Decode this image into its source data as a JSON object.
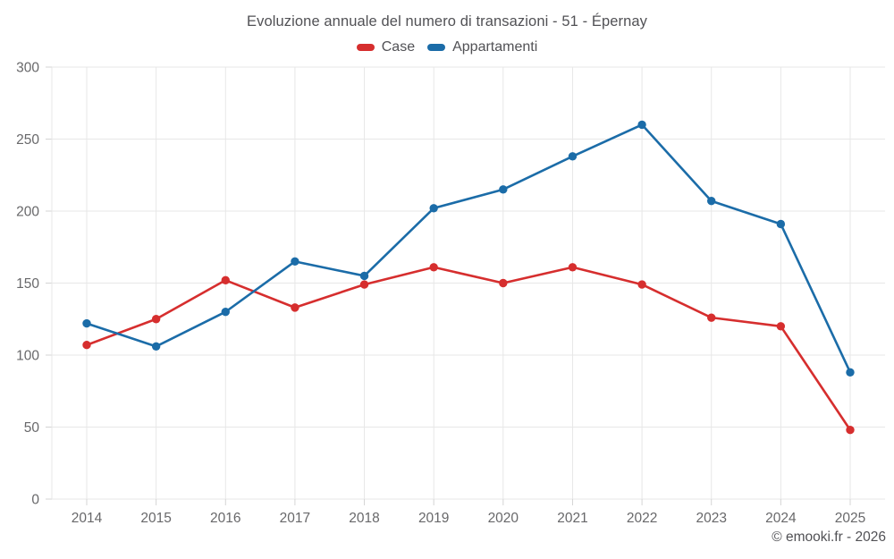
{
  "header": {
    "title": "Evoluzione annuale del numero di transazioni - 51 - Épernay"
  },
  "footer": {
    "credit": "© emooki.fr - 2026"
  },
  "chart_data": {
    "type": "line",
    "title": "Evoluzione annuale del numero di transazioni - 51 - Épernay",
    "categories": [
      "2014",
      "2015",
      "2016",
      "2017",
      "2018",
      "2019",
      "2020",
      "2021",
      "2022",
      "2023",
      "2024",
      "2025"
    ],
    "series": [
      {
        "name": "Case",
        "color": "#d62e2e",
        "values": [
          107,
          125,
          152,
          133,
          149,
          161,
          150,
          161,
          149,
          126,
          120,
          48
        ]
      },
      {
        "name": "Appartamenti",
        "color": "#1b6ca8",
        "values": [
          122,
          106,
          130,
          165,
          155,
          202,
          215,
          238,
          260,
          207,
          191,
          88
        ]
      }
    ],
    "xlabel": "",
    "ylabel": "",
    "ylim": [
      0,
      300
    ],
    "ytick_step": 50,
    "yticks": [
      0,
      50,
      100,
      150,
      200,
      250,
      300
    ],
    "grid": true,
    "legend_position": "top",
    "marker": "circle"
  },
  "style": {
    "grid_color": "#e7e7e7",
    "tick_color": "#d4d4d4",
    "axis_label_color": "#68686a",
    "title_color": "#515155"
  }
}
